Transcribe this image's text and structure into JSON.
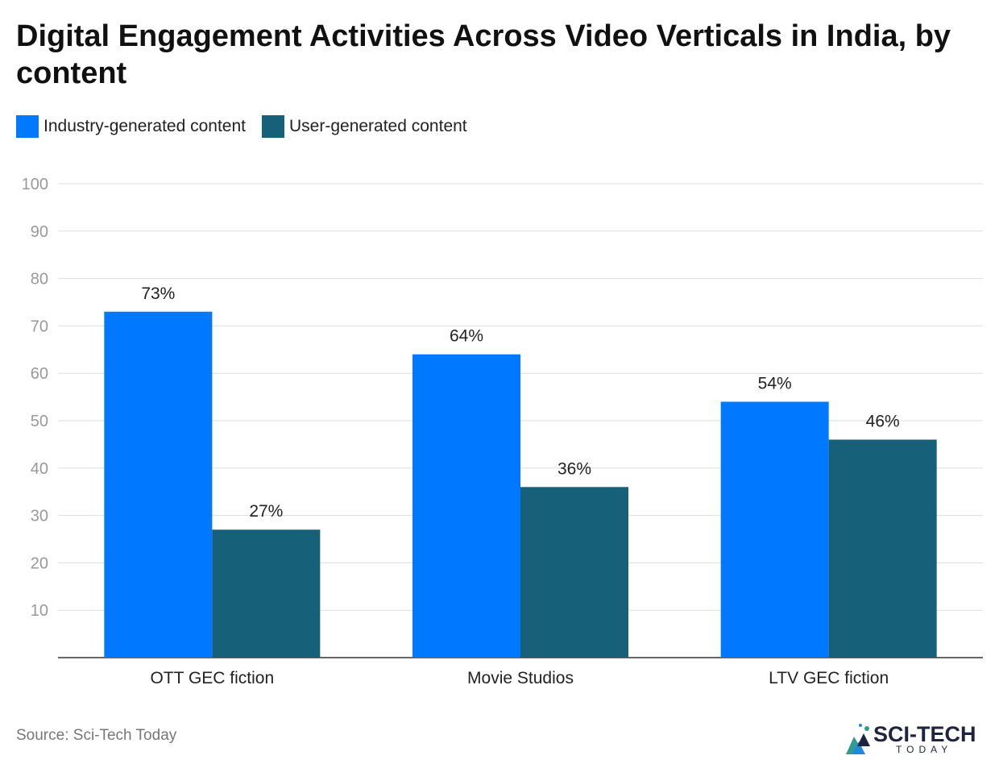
{
  "chart_data": {
    "type": "bar",
    "title": "Digital Engagement Activities Across Video Verticals in India, by content",
    "categories": [
      "OTT GEC fiction",
      "Movie Studios",
      "LTV GEC fiction"
    ],
    "series": [
      {
        "name": "Industry-generated content",
        "values": [
          73,
          64,
          54
        ],
        "labels": [
          "73%",
          "64%",
          "54%"
        ],
        "color": "#0078ff"
      },
      {
        "name": "User-generated content",
        "values": [
          27,
          36,
          46
        ],
        "labels": [
          "27%",
          "36%",
          "46%"
        ],
        "color": "#17607a"
      }
    ],
    "ylim": [
      0,
      100
    ],
    "yticks": [
      10,
      20,
      30,
      40,
      50,
      60,
      70,
      80,
      90,
      100
    ],
    "grid": true,
    "legend_position": "top-left",
    "xlabel": "",
    "ylabel": ""
  },
  "source": {
    "label": "Source:",
    "name": "Sci-Tech Today"
  },
  "logo": {
    "word": "SCI-TECH",
    "sub": "TODAY"
  }
}
